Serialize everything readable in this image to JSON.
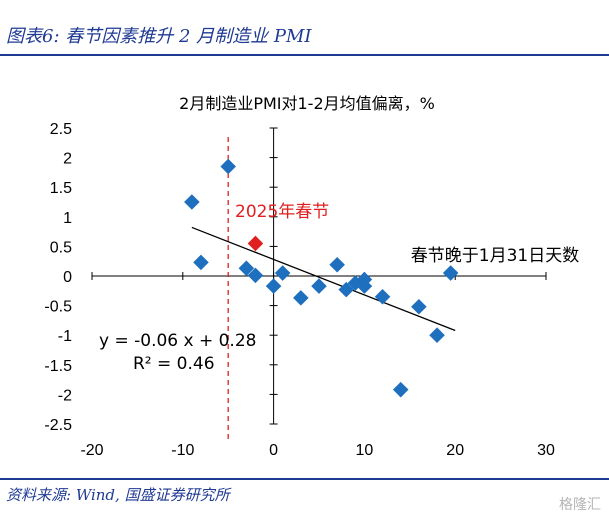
{
  "header": {
    "title": "图表6: 春节因素推升 2 月制造业 PMI"
  },
  "footer": {
    "source": "资料来源: Wind, 国盛证券研究所",
    "watermark": "格隆汇"
  },
  "chart_data": {
    "type": "scatter",
    "title": "2月制造业PMI对1-2月均值偏离，%",
    "xlim": [
      -20,
      30
    ],
    "ylim": [
      -2.5,
      2.5
    ],
    "xticks": [
      "-20",
      "-10",
      "0",
      "10",
      "20",
      "30"
    ],
    "yticks": [
      "2.5",
      "2",
      "1.5",
      "1",
      "0.5",
      "0",
      "-0.5",
      "-1",
      "-1.5",
      "-2",
      "-2.5"
    ],
    "points": [
      {
        "x": -9,
        "y": 1.25
      },
      {
        "x": -8,
        "y": 0.23
      },
      {
        "x": -5,
        "y": 1.85
      },
      {
        "x": -3,
        "y": 0.13
      },
      {
        "x": -2,
        "y": 0.01
      },
      {
        "x": 0,
        "y": -0.17
      },
      {
        "x": 1,
        "y": 0.05
      },
      {
        "x": 3,
        "y": -0.37
      },
      {
        "x": 5,
        "y": -0.17
      },
      {
        "x": 7,
        "y": 0.19
      },
      {
        "x": 8,
        "y": -0.23
      },
      {
        "x": 9,
        "y": -0.12
      },
      {
        "x": 10,
        "y": -0.06
      },
      {
        "x": 10,
        "y": -0.17
      },
      {
        "x": 12,
        "y": -0.35
      },
      {
        "x": 14,
        "y": -1.92
      },
      {
        "x": 16,
        "y": -0.52
      },
      {
        "x": 18,
        "y": -1.0
      },
      {
        "x": 19.5,
        "y": 0.05
      }
    ],
    "highlight": {
      "x": -2,
      "y": 0.55,
      "label": "2025年春节",
      "color": "#e02020"
    },
    "point_color": "#1f6fbf",
    "vline": {
      "x": -5,
      "color": "#e02020"
    },
    "trendline": {
      "slope": -0.06,
      "intercept": 0.28,
      "x_from": -9,
      "x_to": 20
    },
    "equation": "y = -0.06 x + 0.28",
    "r_squared": "R² = 0.46",
    "xlabel": "春节晚于1月31日天数"
  }
}
